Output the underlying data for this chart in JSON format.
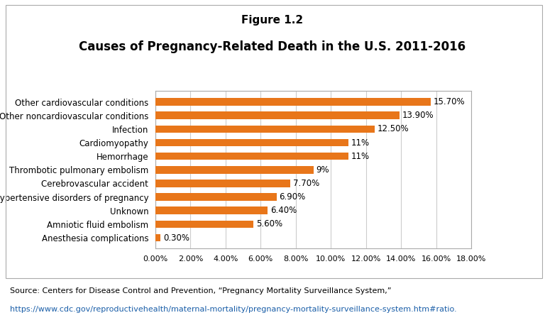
{
  "figure_title": "Figure 1.2",
  "chart_title": "Causes of Pregnancy-Related Death in the U.S. 2011-2016",
  "categories": [
    "Anesthesia complications",
    "Amniotic fluid embolism",
    "Unknown",
    "Hypertensive disorders of pregnancy",
    "Cerebrovascular accident",
    "Thrombotic pulmonary embolism",
    "Hemorrhage",
    "Cardiomyopathy",
    "Infection",
    "Other noncardiovascular conditions",
    "Other cardiovascular conditions"
  ],
  "values": [
    0.3,
    5.6,
    6.4,
    6.9,
    7.7,
    9.0,
    11.0,
    11.0,
    12.5,
    13.9,
    15.7
  ],
  "value_labels": [
    "0.30%",
    "5.60%",
    "6.40%",
    "6.90%",
    "7.70%",
    "9%",
    "11%",
    "11%",
    "12.50%",
    "13.90%",
    "15.70%"
  ],
  "bar_color": "#E8761A",
  "background_color": "#FFFFFF",
  "xlim": [
    0,
    18
  ],
  "xticks": [
    0,
    2,
    4,
    6,
    8,
    10,
    12,
    14,
    16,
    18
  ],
  "xtick_labels": [
    "0.00%",
    "2.00%",
    "4.00%",
    "6.00%",
    "8.00%",
    "10.00%",
    "12.00%",
    "14.00%",
    "16.00%",
    "18.00%"
  ],
  "source_text": "Source: Centers for Disease Control and Prevention, “Pregnancy Mortality Surveillance System,”",
  "source_url": "https://www.cdc.gov/reproductivehealth/maternal-mortality/pregnancy-mortality-surveillance-system.htm#ratio.",
  "figure_title_fontsize": 11,
  "chart_title_fontsize": 12,
  "label_fontsize": 8.5,
  "value_fontsize": 8.5,
  "tick_fontsize": 8,
  "source_fontsize": 8,
  "bar_height": 0.55,
  "border_color": "#AAAAAA",
  "grid_color": "#CCCCCC"
}
